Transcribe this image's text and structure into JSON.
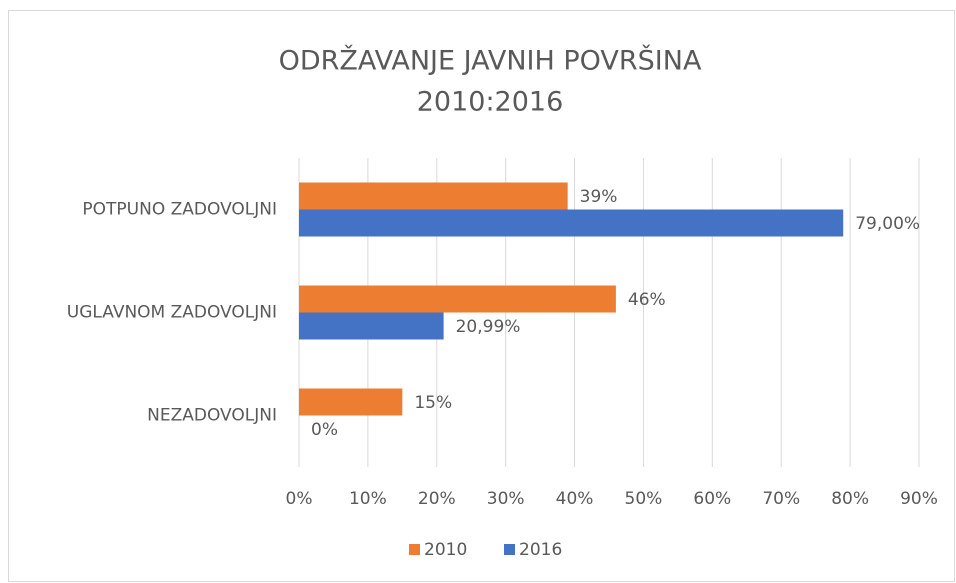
{
  "chart_data": {
    "type": "barh",
    "title": "ODRŽAVANJE JAVNIH POVRŠINA",
    "subtitle": "2010:2016",
    "categories": [
      "POTPUNO ZADOVOLJNI",
      "UGLAVNOM ZADOVOLJNI",
      "NEZADOVOLJNI"
    ],
    "series": [
      {
        "name": "2010",
        "color": "#ed7d31",
        "values": [
          39,
          46,
          15
        ],
        "value_labels": [
          "39%",
          "46%",
          "15%"
        ]
      },
      {
        "name": "2016",
        "color": "#4472c4",
        "values": [
          79,
          20.99,
          0
        ],
        "value_labels": [
          "79,00%",
          "20,99%",
          "0%"
        ]
      }
    ],
    "xlim": [
      0,
      90
    ],
    "xticks": [
      {
        "value": 0,
        "label": "0%"
      },
      {
        "value": 10,
        "label": "10%"
      },
      {
        "value": 20,
        "label": "20%"
      },
      {
        "value": 30,
        "label": "30%"
      },
      {
        "value": 40,
        "label": "40%"
      },
      {
        "value": 50,
        "label": "50%"
      },
      {
        "value": 60,
        "label": "60%"
      },
      {
        "value": 70,
        "label": "70%"
      },
      {
        "value": 80,
        "label": "80%"
      },
      {
        "value": 90,
        "label": "90%"
      }
    ],
    "grid": true,
    "legend": "bottom"
  }
}
